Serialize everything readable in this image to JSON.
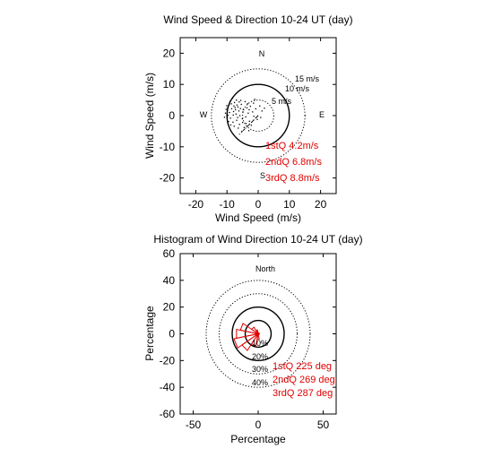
{
  "colors": {
    "axes": "#000000",
    "annotation": "#e00000",
    "scatter": "#000000"
  },
  "chart_data": [
    {
      "type": "scatter",
      "title": "Wind Speed & Direction 10-24 UT (day)",
      "xlabel": "Wind Speed (m/s)",
      "ylabel": "Wind Speed (m/s)",
      "xlim": [
        -25,
        25
      ],
      "ylim": [
        -25,
        25
      ],
      "xticks": [
        -20,
        -10,
        0,
        10,
        20
      ],
      "yticks": [
        -20,
        -10,
        0,
        10,
        20
      ],
      "grid": false,
      "compass": {
        "north": "N",
        "east": "E",
        "south": "S",
        "west": "W"
      },
      "rings": [
        {
          "radius": 5,
          "label": "5 m/s",
          "style": "dotted"
        },
        {
          "radius": 10,
          "label": "10 m/s",
          "style": "solid"
        },
        {
          "radius": 15,
          "label": "15 m/s",
          "style": "dotted"
        }
      ],
      "quartile_lines": [
        {
          "label": "1stQ",
          "value": 4.2,
          "text": "1stQ 4.2m/s",
          "style": "dotted"
        },
        {
          "label": "2ndQ",
          "value": 6.8,
          "text": "2ndQ 6.8m/s",
          "style": "dashed"
        },
        {
          "label": "3rdQ",
          "value": 8.8,
          "text": "3rdQ 8.8m/s",
          "style": "dotted"
        }
      ],
      "quartile_direction_deg": 225,
      "points": [
        [
          -8.5,
          2.2
        ],
        [
          -7.8,
          3.1
        ],
        [
          -9.2,
          1.0
        ],
        [
          -6.5,
          2.8
        ],
        [
          -7.1,
          0.5
        ],
        [
          -8.9,
          -0.8
        ],
        [
          -6.2,
          1.5
        ],
        [
          -5.4,
          3.6
        ],
        [
          -7.6,
          4.2
        ],
        [
          -9.8,
          2.5
        ],
        [
          -4.8,
          2.0
        ],
        [
          -6.9,
          -1.5
        ],
        [
          -8.1,
          -2.1
        ],
        [
          -5.9,
          0.0
        ],
        [
          -3.6,
          2.5
        ],
        [
          -4.2,
          4.5
        ],
        [
          -7.3,
          1.9
        ],
        [
          -8.6,
          3.8
        ],
        [
          -9.5,
          -1.9
        ],
        [
          -6.0,
          -2.8
        ],
        [
          -5.1,
          -1.0
        ],
        [
          -3.2,
          0.8
        ],
        [
          -2.5,
          3.0
        ],
        [
          -1.8,
          1.2
        ],
        [
          -10.5,
          0.8
        ],
        [
          -10.1,
          3.2
        ],
        [
          -7.0,
          5.0
        ],
        [
          -5.6,
          4.9
        ],
        [
          -3.9,
          -2.5
        ],
        [
          -4.5,
          -3.8
        ],
        [
          -6.4,
          -4.0
        ],
        [
          -2.8,
          -1.8
        ],
        [
          -1.5,
          4.0
        ],
        [
          -0.8,
          2.2
        ],
        [
          0.5,
          3.1
        ],
        [
          1.2,
          1.5
        ],
        [
          0.8,
          -0.6
        ],
        [
          -0.3,
          -1.2
        ],
        [
          2.0,
          2.4
        ],
        [
          -1.1,
          5.2
        ],
        [
          -8.2,
          5.6
        ],
        [
          -9.0,
          4.6
        ],
        [
          -10.8,
          -0.5
        ],
        [
          -7.7,
          -3.4
        ],
        [
          -5.2,
          -5.0
        ],
        [
          -3.0,
          -4.8
        ],
        [
          -2.2,
          -3.1
        ],
        [
          -1.4,
          -0.2
        ],
        [
          -6.8,
          3.4
        ],
        [
          -7.4,
          2.6
        ],
        [
          -8.0,
          0.2
        ],
        [
          -6.6,
          -0.6
        ],
        [
          -5.7,
          2.3
        ],
        [
          -4.9,
          1.2
        ],
        [
          -9.3,
          3.5
        ],
        [
          -8.8,
          -3.0
        ],
        [
          -3.4,
          3.8
        ],
        [
          -2.9,
          1.9
        ],
        [
          -4.0,
          -0.4
        ],
        [
          -5.0,
          -2.2
        ],
        [
          -6.1,
          4.4
        ],
        [
          -7.9,
          1.3
        ],
        [
          -9.7,
          0.1
        ],
        [
          -10.3,
          2.0
        ]
      ],
      "annotations": [
        "1stQ 4.2m/s",
        "2ndQ 6.8m/s",
        "3rdQ 8.8m/s"
      ]
    },
    {
      "type": "polar-histogram",
      "title": "Histogram of Wind Direction 10-24 UT (day)",
      "xlabel": "Percentage",
      "ylabel": "Percentage",
      "xlim": [
        -60,
        60
      ],
      "ylim": [
        -60,
        60
      ],
      "xticks": [
        -50,
        0,
        50
      ],
      "yticks": [
        -60,
        -40,
        -20,
        0,
        20,
        40,
        60
      ],
      "grid": false,
      "north_label": "North",
      "rings": [
        {
          "radius": 10,
          "label": "10%",
          "style": "solid"
        },
        {
          "radius": 20,
          "label": "20%",
          "style": "solid"
        },
        {
          "radius": 30,
          "label": "30%",
          "style": "dotted"
        },
        {
          "radius": 40,
          "label": "40%",
          "style": "dotted"
        }
      ],
      "bin_width_deg": 22.5,
      "sectors": [
        {
          "direction_deg": 202.5,
          "percentage": 9
        },
        {
          "direction_deg": 225,
          "percentage": 15
        },
        {
          "direction_deg": 247.5,
          "percentage": 19
        },
        {
          "direction_deg": 270,
          "percentage": 17
        },
        {
          "direction_deg": 292.5,
          "percentage": 14
        },
        {
          "direction_deg": 315,
          "percentage": 6
        },
        {
          "direction_deg": 337.5,
          "percentage": 3
        },
        {
          "direction_deg": 180,
          "percentage": 4
        }
      ],
      "quartile_directions": [
        {
          "label": "1stQ",
          "value": 225,
          "text": "1stQ 225 deg"
        },
        {
          "label": "2ndQ",
          "value": 269,
          "text": "2ndQ 269 deg"
        },
        {
          "label": "3rdQ",
          "value": 287,
          "text": "3rdQ 287 deg"
        }
      ],
      "annotations": [
        "1stQ 225 deg",
        "2ndQ 269 deg",
        "3rdQ 287 deg"
      ]
    }
  ]
}
